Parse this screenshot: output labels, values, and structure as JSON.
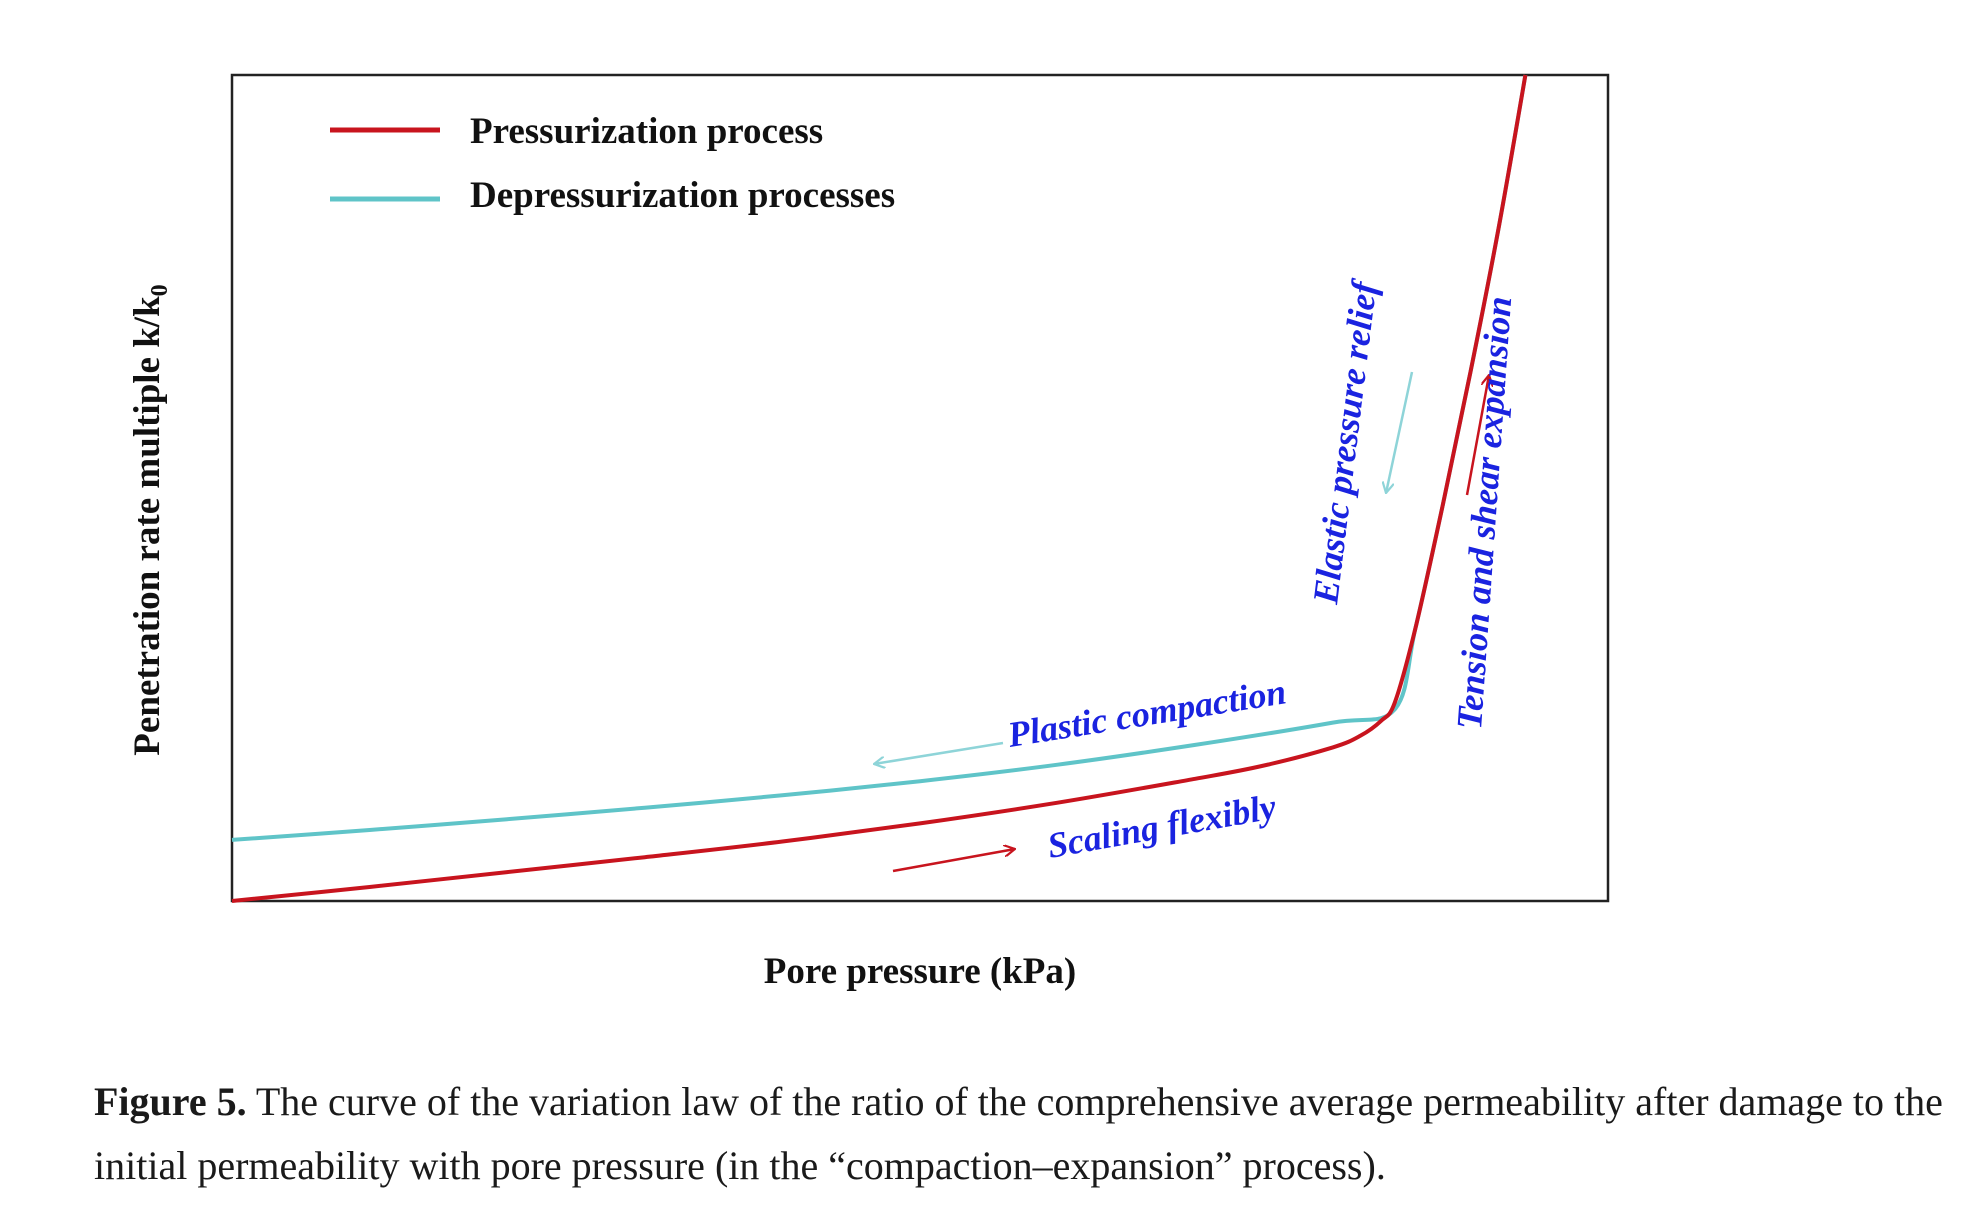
{
  "chart_data": {
    "type": "line",
    "title": "",
    "xlabel": "Pore pressure (kPa)",
    "ylabel": "Penetration rate multiple k/k",
    "ylabel_subscript": "0",
    "xlim": [
      0,
      1
    ],
    "ylim": [
      0,
      1
    ],
    "axis_ticks": "none (qualitative axes)",
    "legend_position": "top-left",
    "series": [
      {
        "name": "Pressurization process",
        "color": "#c8141e",
        "x": [
          0.0,
          0.1,
          0.2,
          0.3,
          0.4,
          0.5,
          0.6,
          0.7,
          0.75,
          0.8,
          0.82,
          0.835,
          0.845,
          0.86,
          0.88,
          0.9,
          0.92,
          0.94
        ],
        "y": [
          0.0,
          0.017,
          0.035,
          0.053,
          0.072,
          0.094,
          0.119,
          0.148,
          0.164,
          0.186,
          0.2,
          0.218,
          0.24,
          0.33,
          0.48,
          0.64,
          0.81,
          1.0
        ]
      },
      {
        "name": "Depressurization processes",
        "color": "#5fc4c8",
        "x": [
          0.0,
          0.1,
          0.2,
          0.3,
          0.4,
          0.5,
          0.6,
          0.7,
          0.8,
          0.845,
          0.86,
          0.88,
          0.9,
          0.92,
          0.94
        ],
        "y": [
          0.074,
          0.086,
          0.099,
          0.113,
          0.128,
          0.145,
          0.165,
          0.189,
          0.216,
          0.232,
          0.33,
          0.48,
          0.64,
          0.81,
          1.0
        ]
      }
    ],
    "annotations": [
      {
        "text": "Scaling flexibly",
        "x": 0.72,
        "y": 0.09
      },
      {
        "text": "Plastic compaction",
        "x": 0.68,
        "y": 0.25
      },
      {
        "text": "Elastic pressure relief",
        "x": 0.82,
        "y": 0.6
      },
      {
        "text": "Tension and shear expansion",
        "x": 0.97,
        "y": 0.58
      }
    ]
  },
  "caption": {
    "label": "Figure 5.",
    "text": " The curve of the variation law of the ratio of the comprehensive average permeability after damage to the initial permeability with pore pressure (in the “compaction–expansion” process)."
  }
}
